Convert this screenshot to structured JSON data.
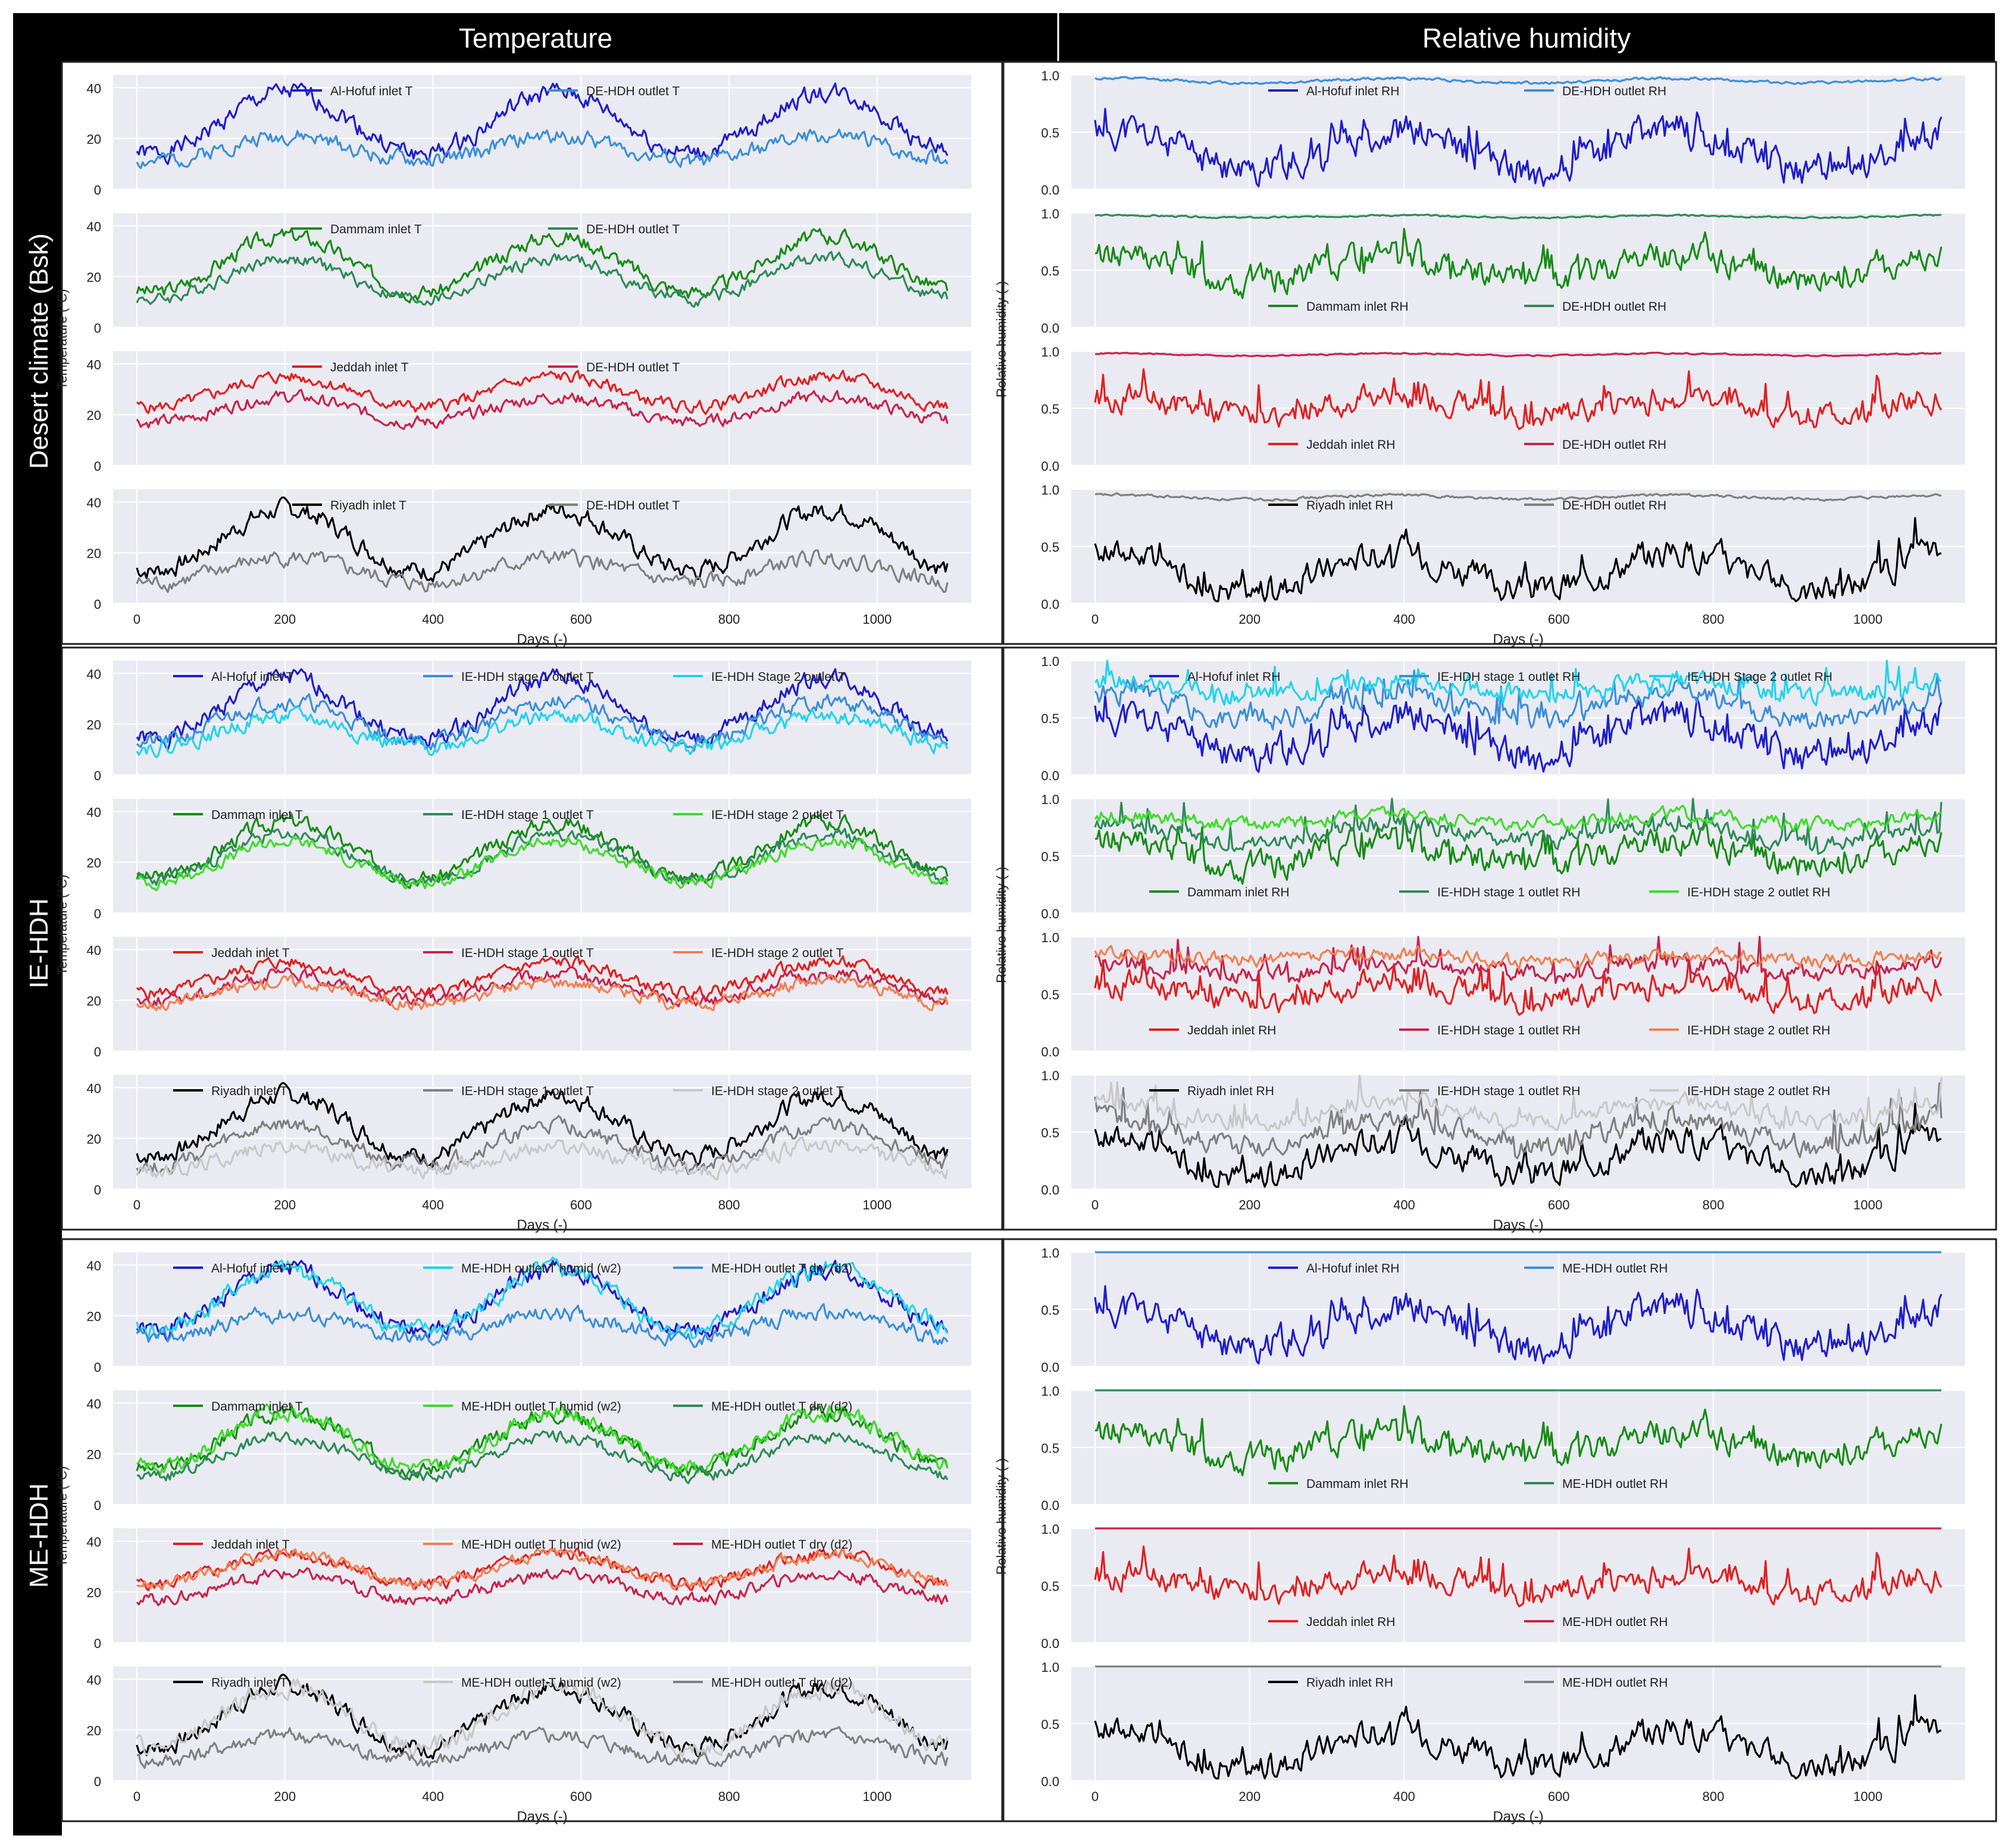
{
  "column_headers": [
    "Temperature",
    "Relative humidity"
  ],
  "row_labels": [
    "Desert climate (Bsk)",
    "IE-HDH",
    "ME-HDH"
  ],
  "axis_text": {
    "temp_ylabel": "Temperature (°C)",
    "rh_ylabel": "Relative humidity (-)",
    "xlabel": "Days (-)"
  },
  "axes": {
    "x_range": [
      0,
      1095
    ],
    "x_ticks": [
      0,
      200,
      400,
      600,
      800,
      1000
    ],
    "temp_ylim": [
      0,
      45
    ],
    "temp_ticks": [
      0,
      20,
      40
    ],
    "rh_ylim": [
      0,
      1
    ],
    "rh_ticks": [
      "0.0",
      "0.5",
      "1.0"
    ],
    "grid": true,
    "background": "#eaeaf2"
  },
  "colors": {
    "hofuf_inlet": "#1f1fcc",
    "hofuf_outlet": "#3b8fd9",
    "hofuf_stage2": "#22d3ee",
    "dammam_inlet": "#178c17",
    "dammam_outlet": "#2e8b57",
    "dammam_stage2": "#3ddc2a",
    "jeddah_inlet": "#e02020",
    "jeddah_outlet": "#c8234a",
    "jeddah_stage2": "#f08050",
    "riyadh_inlet": "#000000",
    "riyadh_outlet": "#808080",
    "riyadh_stage2": "#c8c8c8"
  },
  "chart_data": [
    {
      "type": "line",
      "group": "Desert climate (Bsk)",
      "variable": "Temperature",
      "legend_position": "top",
      "panels": [
        {
          "series": [
            {
              "name": "Al-Hofuf inlet T",
              "color_key": "hofuf_inlet",
              "mean": 26,
              "amp": 12,
              "noise": 3,
              "seed": 1
            },
            {
              "name": "DE-HDH outlet T",
              "color_key": "hofuf_outlet",
              "mean": 16,
              "amp": 5,
              "noise": 2.5,
              "seed": 2
            }
          ]
        },
        {
          "series": [
            {
              "name": "Dammam inlet T",
              "color_key": "dammam_inlet",
              "mean": 25,
              "amp": 11,
              "noise": 2.5,
              "seed": 3
            },
            {
              "name": "DE-HDH outlet T",
              "color_key": "dammam_outlet",
              "mean": 19,
              "amp": 8,
              "noise": 2,
              "seed": 4
            }
          ]
        },
        {
          "series": [
            {
              "name": "Jeddah inlet T",
              "color_key": "jeddah_inlet",
              "mean": 29,
              "amp": 6,
              "noise": 2,
              "seed": 5
            },
            {
              "name": "DE-HDH outlet T",
              "color_key": "jeddah_outlet",
              "mean": 22,
              "amp": 5,
              "noise": 2,
              "seed": 6
            }
          ]
        },
        {
          "series": [
            {
              "name": "Riyadh inlet T",
              "color_key": "riyadh_inlet",
              "mean": 25,
              "amp": 12,
              "noise": 3,
              "seed": 7
            },
            {
              "name": "DE-HDH outlet T",
              "color_key": "riyadh_outlet",
              "mean": 13,
              "amp": 5,
              "noise": 2.5,
              "seed": 8
            }
          ]
        }
      ]
    },
    {
      "type": "line",
      "group": "Desert climate (Bsk)",
      "variable": "Relative humidity",
      "legend_position": "top / bottom",
      "panels": [
        {
          "series": [
            {
              "name": "Al-Hofuf inlet RH",
              "color_key": "hofuf_inlet",
              "mean": 0.34,
              "amp": -0.18,
              "noise": 0.12,
              "seed": 11
            },
            {
              "name": "DE-HDH outlet RH",
              "color_key": "hofuf_outlet",
              "mean": 0.95,
              "amp": -0.02,
              "noise": 0.01,
              "seed": 12
            }
          ]
        },
        {
          "series": [
            {
              "name": "Dammam inlet RH",
              "color_key": "dammam_inlet",
              "mean": 0.52,
              "amp": -0.12,
              "noise": 0.1,
              "seed": 13
            },
            {
              "name": "DE-HDH outlet RH",
              "color_key": "dammam_outlet",
              "mean": 0.97,
              "amp": -0.01,
              "noise": 0.006,
              "seed": 14
            }
          ]
        },
        {
          "series": [
            {
              "name": "Jeddah inlet RH",
              "color_key": "jeddah_inlet",
              "mean": 0.52,
              "amp": -0.08,
              "noise": 0.09,
              "seed": 15
            },
            {
              "name": "DE-HDH outlet RH",
              "color_key": "jeddah_outlet",
              "mean": 0.97,
              "amp": -0.01,
              "noise": 0.005,
              "seed": 16
            }
          ]
        },
        {
          "series": [
            {
              "name": "Riyadh inlet RH",
              "color_key": "riyadh_inlet",
              "mean": 0.28,
              "amp": -0.17,
              "noise": 0.1,
              "seed": 17
            },
            {
              "name": "DE-HDH outlet RH",
              "color_key": "riyadh_outlet",
              "mean": 0.93,
              "amp": -0.02,
              "noise": 0.01,
              "seed": 18
            }
          ]
        }
      ]
    },
    {
      "type": "line",
      "group": "IE-HDH",
      "variable": "Temperature",
      "legend_position": "top",
      "panels": [
        {
          "series": [
            {
              "name": "Al-Hofuf inlet T",
              "color_key": "hofuf_inlet",
              "mean": 26,
              "amp": 12,
              "noise": 3,
              "seed": 1
            },
            {
              "name": "IE-HDH stage 1 outlet T",
              "color_key": "hofuf_outlet",
              "mean": 21,
              "amp": 8,
              "noise": 2.5,
              "seed": 21
            },
            {
              "name": "IE-HDH Stage 2 outlet T",
              "color_key": "hofuf_stage2",
              "mean": 17,
              "amp": 6,
              "noise": 2.5,
              "seed": 22
            }
          ]
        },
        {
          "series": [
            {
              "name": "Dammam inlet T",
              "color_key": "dammam_inlet",
              "mean": 25,
              "amp": 11,
              "noise": 2.5,
              "seed": 3
            },
            {
              "name": "IE-HDH stage 1 outlet T",
              "color_key": "dammam_outlet",
              "mean": 22,
              "amp": 9,
              "noise": 2,
              "seed": 23
            },
            {
              "name": "IE-HDH stage 2 outlet T",
              "color_key": "dammam_stage2",
              "mean": 20,
              "amp": 8,
              "noise": 2,
              "seed": 24
            }
          ]
        },
        {
          "series": [
            {
              "name": "Jeddah inlet T",
              "color_key": "jeddah_inlet",
              "mean": 29,
              "amp": 6,
              "noise": 2,
              "seed": 5
            },
            {
              "name": "IE-HDH stage 1 outlet T",
              "color_key": "jeddah_outlet",
              "mean": 25,
              "amp": 5,
              "noise": 2,
              "seed": 25
            },
            {
              "name": "IE-HDH stage 2 outlet T",
              "color_key": "jeddah_stage2",
              "mean": 23,
              "amp": 4.5,
              "noise": 2,
              "seed": 26
            }
          ]
        },
        {
          "series": [
            {
              "name": "Riyadh inlet T",
              "color_key": "riyadh_inlet",
              "mean": 25,
              "amp": 12,
              "noise": 3,
              "seed": 7
            },
            {
              "name": "IE-HDH stage 1 outlet T",
              "color_key": "riyadh_outlet",
              "mean": 17,
              "amp": 8,
              "noise": 2.5,
              "seed": 27
            },
            {
              "name": "IE-HDH stage 2 outlet T",
              "color_key": "riyadh_stage2",
              "mean": 12,
              "amp": 5,
              "noise": 2.5,
              "seed": 28
            }
          ]
        }
      ]
    },
    {
      "type": "line",
      "group": "IE-HDH",
      "variable": "Relative humidity",
      "legend_position": "top / bottom",
      "panels": [
        {
          "series": [
            {
              "name": "Al-Hofuf inlet RH",
              "color_key": "hofuf_inlet",
              "mean": 0.34,
              "amp": -0.18,
              "noise": 0.12,
              "seed": 11
            },
            {
              "name": "IE-HDH stage 1 outlet RH",
              "color_key": "hofuf_outlet",
              "mean": 0.6,
              "amp": -0.12,
              "noise": 0.08,
              "seed": 31
            },
            {
              "name": "IE-HDH Stage 2 outlet RH",
              "color_key": "hofuf_stage2",
              "mean": 0.76,
              "amp": -0.06,
              "noise": 0.07,
              "seed": 32
            }
          ]
        },
        {
          "series": [
            {
              "name": "Dammam inlet RH",
              "color_key": "dammam_inlet",
              "mean": 0.52,
              "amp": -0.12,
              "noise": 0.1,
              "seed": 13
            },
            {
              "name": "IE-HDH stage 1 outlet RH",
              "color_key": "dammam_outlet",
              "mean": 0.7,
              "amp": -0.08,
              "noise": 0.06,
              "seed": 33
            },
            {
              "name": "IE-HDH stage 2 outlet RH",
              "color_key": "dammam_stage2",
              "mean": 0.82,
              "amp": -0.04,
              "noise": 0.05,
              "seed": 34
            }
          ]
        },
        {
          "series": [
            {
              "name": "Jeddah inlet RH",
              "color_key": "jeddah_inlet",
              "mean": 0.52,
              "amp": -0.08,
              "noise": 0.09,
              "seed": 15
            },
            {
              "name": "IE-HDH stage 1 outlet RH",
              "color_key": "jeddah_outlet",
              "mean": 0.72,
              "amp": -0.05,
              "noise": 0.06,
              "seed": 35
            },
            {
              "name": "IE-HDH stage 2 outlet RH",
              "color_key": "jeddah_stage2",
              "mean": 0.82,
              "amp": -0.03,
              "noise": 0.05,
              "seed": 36
            }
          ]
        },
        {
          "series": [
            {
              "name": "Riyadh inlet RH",
              "color_key": "riyadh_inlet",
              "mean": 0.28,
              "amp": -0.17,
              "noise": 0.1,
              "seed": 17
            },
            {
              "name": "IE-HDH stage 1 outlet RH",
              "color_key": "riyadh_outlet",
              "mean": 0.5,
              "amp": -0.12,
              "noise": 0.08,
              "seed": 37
            },
            {
              "name": "IE-HDH stage 2 outlet RH",
              "color_key": "riyadh_stage2",
              "mean": 0.68,
              "amp": -0.08,
              "noise": 0.07,
              "seed": 38
            }
          ]
        }
      ]
    },
    {
      "type": "line",
      "group": "ME-HDH",
      "variable": "Temperature",
      "legend_position": "top",
      "panels": [
        {
          "series": [
            {
              "name": "Al-Hofuf inlet T",
              "color_key": "hofuf_inlet",
              "mean": 26,
              "amp": 12,
              "noise": 3,
              "seed": 1
            },
            {
              "name": "ME-HDH outlet T humid (w2)",
              "color_key": "hofuf_stage2",
              "mean": 26,
              "amp": 12,
              "noise": 3,
              "seed": 41
            },
            {
              "name": "ME-HDH outlet T dry (d2)",
              "color_key": "hofuf_outlet",
              "mean": 16,
              "amp": 5,
              "noise": 2.5,
              "seed": 42
            }
          ]
        },
        {
          "series": [
            {
              "name": "Dammam inlet T",
              "color_key": "dammam_inlet",
              "mean": 25,
              "amp": 11,
              "noise": 2.5,
              "seed": 3
            },
            {
              "name": "ME-HDH outlet T humid (w2)",
              "color_key": "dammam_stage2",
              "mean": 25.5,
              "amp": 11,
              "noise": 2.5,
              "seed": 43
            },
            {
              "name": "ME-HDH outlet T dry (d2)",
              "color_key": "dammam_outlet",
              "mean": 19,
              "amp": 8,
              "noise": 2,
              "seed": 44
            }
          ]
        },
        {
          "series": [
            {
              "name": "Jeddah inlet T",
              "color_key": "jeddah_inlet",
              "mean": 29,
              "amp": 6,
              "noise": 2,
              "seed": 5
            },
            {
              "name": "ME-HDH outlet T humid (w2)",
              "color_key": "jeddah_stage2",
              "mean": 29,
              "amp": 6,
              "noise": 2,
              "seed": 45
            },
            {
              "name": "ME-HDH outlet T dry (d2)",
              "color_key": "jeddah_outlet",
              "mean": 22,
              "amp": 5,
              "noise": 2,
              "seed": 46
            }
          ]
        },
        {
          "series": [
            {
              "name": "Riyadh inlet T",
              "color_key": "riyadh_inlet",
              "mean": 25,
              "amp": 12,
              "noise": 3,
              "seed": 7
            },
            {
              "name": "ME-HDH outlet T humid (w2)",
              "color_key": "riyadh_stage2",
              "mean": 25,
              "amp": 12,
              "noise": 3,
              "seed": 47
            },
            {
              "name": "ME-HDH outlet T dry (d2)",
              "color_key": "riyadh_outlet",
              "mean": 13,
              "amp": 5,
              "noise": 2.5,
              "seed": 48
            }
          ]
        }
      ]
    },
    {
      "type": "line",
      "group": "ME-HDH",
      "variable": "Relative humidity",
      "legend_position": "top / bottom",
      "panels": [
        {
          "series": [
            {
              "name": "Al-Hofuf inlet RH",
              "color_key": "hofuf_inlet",
              "mean": 0.34,
              "amp": -0.18,
              "noise": 0.12,
              "seed": 11
            },
            {
              "name": "ME-HDH outlet RH",
              "color_key": "hofuf_outlet",
              "mean": 1.0,
              "amp": 0,
              "noise": 0,
              "seed": 51
            }
          ]
        },
        {
          "series": [
            {
              "name": "Dammam inlet RH",
              "color_key": "dammam_inlet",
              "mean": 0.52,
              "amp": -0.12,
              "noise": 0.1,
              "seed": 13
            },
            {
              "name": "ME-HDH outlet RH",
              "color_key": "dammam_outlet",
              "mean": 1.0,
              "amp": 0,
              "noise": 0,
              "seed": 52
            }
          ]
        },
        {
          "series": [
            {
              "name": "Jeddah inlet RH",
              "color_key": "jeddah_inlet",
              "mean": 0.52,
              "amp": -0.08,
              "noise": 0.09,
              "seed": 15
            },
            {
              "name": "ME-HDH outlet RH",
              "color_key": "jeddah_outlet",
              "mean": 1.0,
              "amp": 0,
              "noise": 0,
              "seed": 53
            }
          ]
        },
        {
          "series": [
            {
              "name": "Riyadh inlet RH",
              "color_key": "riyadh_inlet",
              "mean": 0.28,
              "amp": -0.17,
              "noise": 0.1,
              "seed": 17
            },
            {
              "name": "ME-HDH outlet RH",
              "color_key": "riyadh_outlet",
              "mean": 1.0,
              "amp": 0,
              "noise": 0,
              "seed": 54
            }
          ]
        }
      ]
    }
  ]
}
